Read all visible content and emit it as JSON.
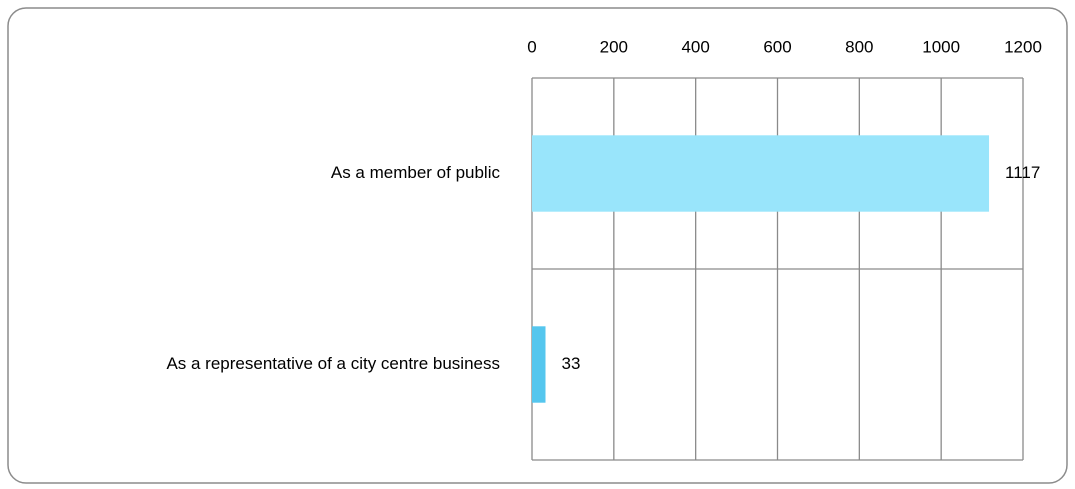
{
  "chart_data": {
    "type": "bar",
    "orientation": "horizontal",
    "categories": [
      "As a member of public",
      "As a representative of a city centre business"
    ],
    "values": [
      1117,
      33
    ],
    "colors": [
      "#99e5fb",
      "#55c6ee"
    ],
    "xlim": [
      0,
      1200
    ],
    "xticks": [
      0,
      200,
      400,
      600,
      800,
      1000,
      1200
    ],
    "grid": true
  }
}
